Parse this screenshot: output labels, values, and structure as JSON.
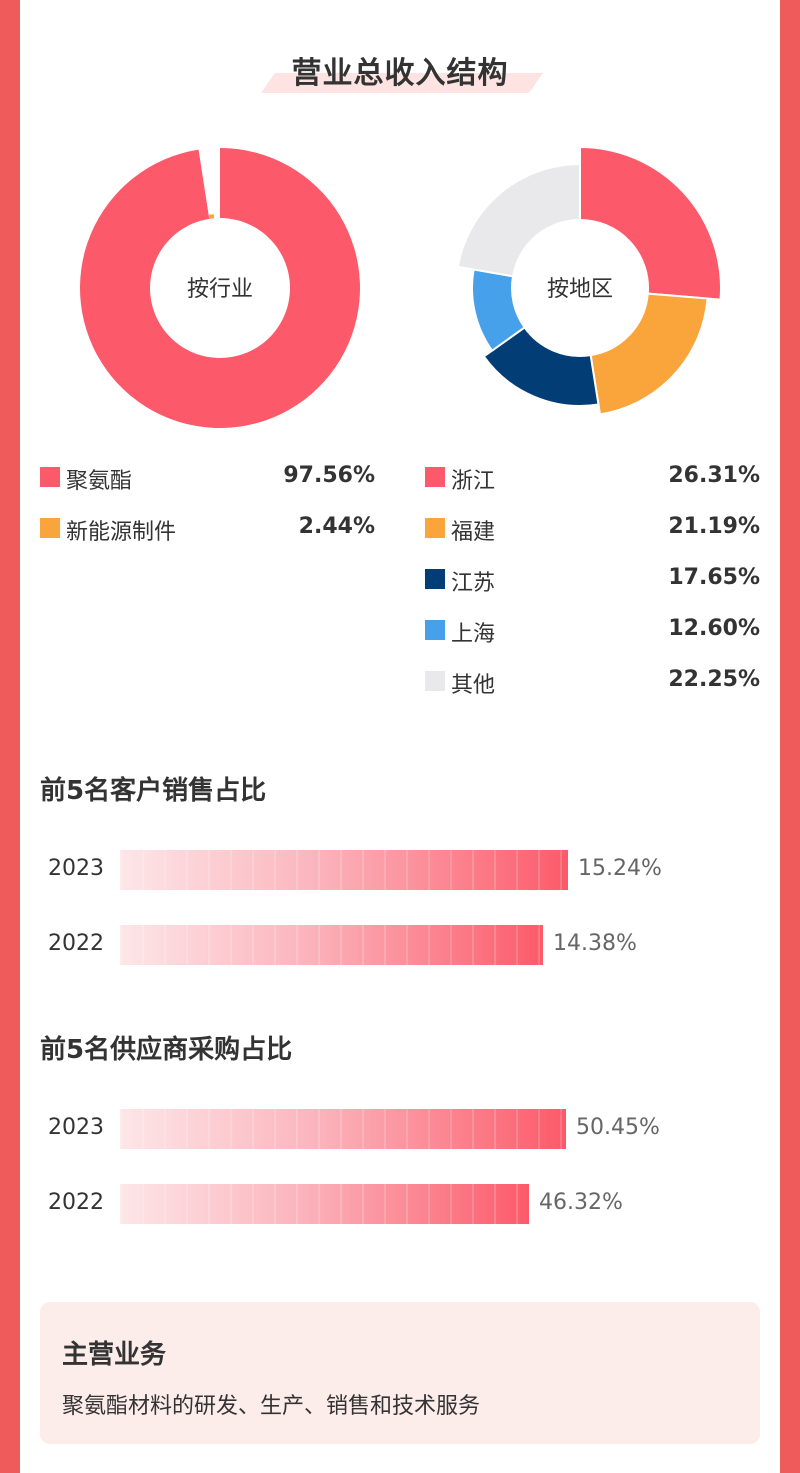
{
  "page_title": "营业总收入结构",
  "colors": {
    "accent": "#ef5b5b",
    "pink": "#fc5a6a",
    "orange": "#f9a53c",
    "navy": "#033d75",
    "blue": "#47a1ea",
    "grey": "#e9e9ec"
  },
  "chart_data": [
    {
      "type": "pie",
      "center_label": "按行业",
      "slices": [
        {
          "label": "聚氨酯",
          "value": 97.56,
          "display": "97.56%",
          "color": "#fc5a6a"
        },
        {
          "label": "新能源制件",
          "value": 2.44,
          "display": "2.44%",
          "color": "#f9a53c"
        }
      ]
    },
    {
      "type": "pie",
      "center_label": "按地区",
      "slices": [
        {
          "label": "浙江",
          "value": 26.31,
          "display": "26.31%",
          "color": "#fc5a6a"
        },
        {
          "label": "福建",
          "value": 21.19,
          "display": "21.19%",
          "color": "#f9a53c"
        },
        {
          "label": "江苏",
          "value": 17.65,
          "display": "17.65%",
          "color": "#033d75"
        },
        {
          "label": "上海",
          "value": 12.6,
          "display": "12.60%",
          "color": "#47a1ea"
        },
        {
          "label": "其他",
          "value": 22.25,
          "display": "22.25%",
          "color": "#e9e9ec"
        }
      ]
    },
    {
      "type": "bar",
      "title": "前5名客户销售占比",
      "categories": [
        "2023",
        "2022"
      ],
      "values": [
        15.24,
        14.38
      ],
      "display": [
        "15.24%",
        "14.38%"
      ]
    },
    {
      "type": "bar",
      "title": "前5名供应商采购占比",
      "categories": [
        "2023",
        "2022"
      ],
      "values": [
        50.45,
        46.32
      ],
      "display": [
        "50.45%",
        "46.32%"
      ]
    }
  ],
  "business": {
    "title": "主营业务",
    "text": "聚氨酯材料的研发、生产、销售和技术服务"
  }
}
